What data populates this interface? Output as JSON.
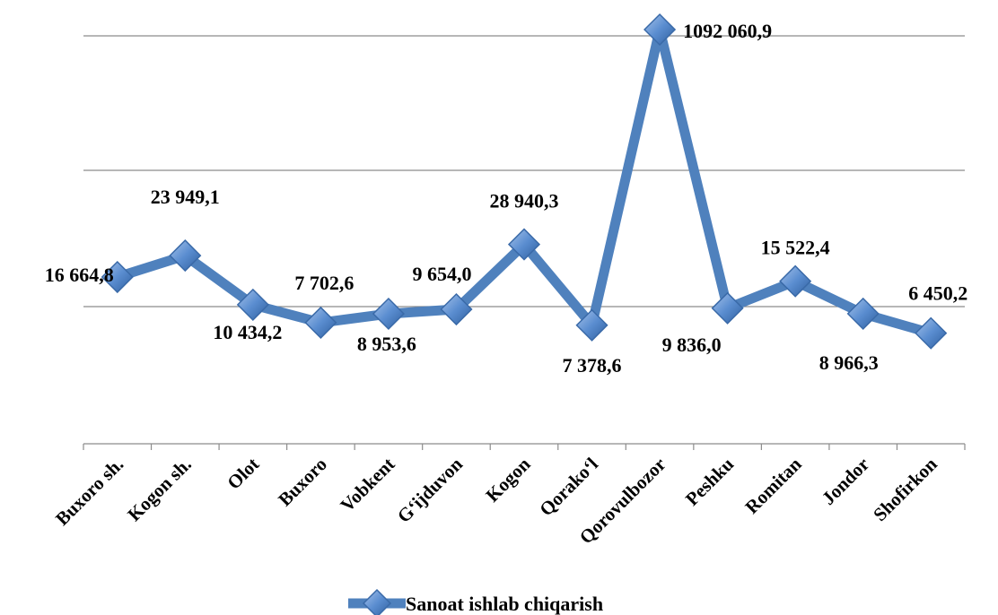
{
  "chart_data": {
    "type": "line",
    "categories": [
      "Buxoro sh.",
      "Kogon sh.",
      "Olot",
      "Buxoro",
      "Vobkent",
      "G‘ijduvon",
      "Kogon",
      "Qorako‘l",
      "Qorovulbozor",
      "Peshku",
      "Romitan",
      "Jondor",
      "Shofirkon"
    ],
    "series": [
      {
        "name": "Sanoat ishlab chiqarish",
        "values": [
          16664.8,
          23949.1,
          10434.2,
          7702.6,
          8953.6,
          9654.0,
          28940.3,
          7378.6,
          1092060.9,
          9836.0,
          15522.4,
          8966.3,
          6450.2
        ],
        "labels": [
          "16 664,8",
          "23 949,1",
          "10 434,2",
          "7 702,6",
          "8 953,6",
          "9 654,0",
          "28 940,3",
          "7 378,6",
          "1092 060,9",
          "9 836,0",
          "15 522,4",
          "8 966,3",
          "6 450,2"
        ]
      }
    ],
    "xlabel": "",
    "ylabel": "",
    "y_scale": "log",
    "grid": true,
    "legend": "bottom",
    "colors": {
      "line": "#4f81bd",
      "marker": "#4f81bd",
      "grid": "#8c8c8c"
    }
  }
}
